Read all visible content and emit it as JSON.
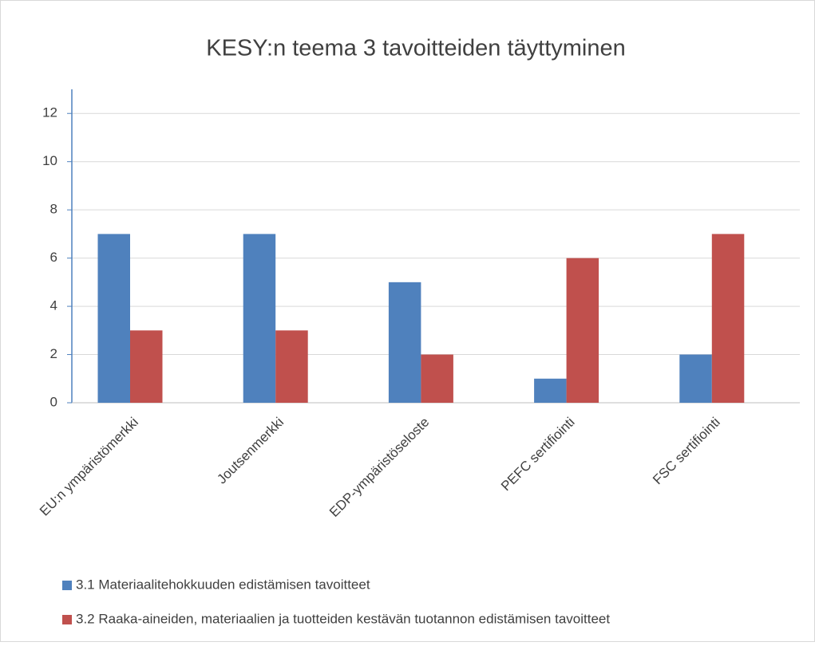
{
  "chart_data": {
    "type": "bar",
    "title": "KESY:n teema 3 tavoitteiden täyttyminen",
    "categories": [
      "EU:n ympäristömerkki",
      "Joutsenmerkki",
      "EDP-ympäristöseloste",
      "PEFC sertifiointi",
      "FSC sertifiointi"
    ],
    "series": [
      {
        "name": "3.1 Materiaalitehokkuuden edistämisen tavoitteet",
        "color": "#4f81bd",
        "values": [
          7,
          7,
          5,
          1,
          2
        ]
      },
      {
        "name": "3.2 Raaka-aineiden, materiaalien ja tuotteiden kestävän tuotannon edistämisen tavoitteet",
        "color": "#c0504d",
        "values": [
          3,
          3,
          2,
          6,
          7
        ]
      }
    ],
    "ylim": [
      0,
      13
    ],
    "yticks": [
      0,
      2,
      4,
      6,
      8,
      10,
      12
    ],
    "grid": true,
    "legend": "bottom"
  }
}
